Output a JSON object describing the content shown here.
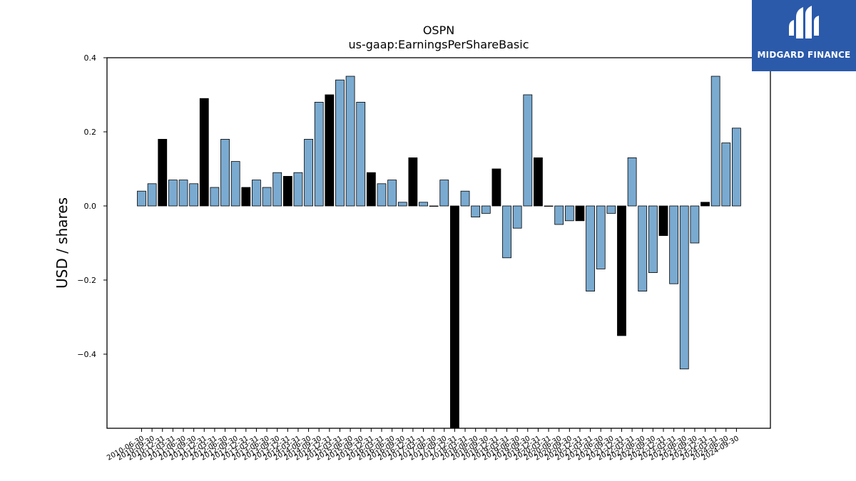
{
  "brand": {
    "name": "MIDGARD FINANCE",
    "logo_icon": "midgard-mark-icon",
    "background_color": "#2b5aaa"
  },
  "chart_data": {
    "type": "bar",
    "title": "OSPN",
    "subtitle": "us-gaap:EarningsPerShareBasic",
    "xlabel": "",
    "ylabel": "USD / shares",
    "ylim": [
      -0.6,
      0.4
    ],
    "yticks": [
      0.4,
      0.2,
      0.0,
      -0.2,
      -0.4
    ],
    "ytick_labels": [
      "0.4",
      "0.2",
      "0.0",
      "−0.2",
      "−0.4"
    ],
    "grid": false,
    "colors": {
      "quarterly": "#7aaad0",
      "annual": "#000000",
      "edge": "#000000"
    },
    "categories": [
      "2010-06-30",
      "2010-09-30",
      "2010-12-31",
      "2011-03-31",
      "2011-06-30",
      "2011-09-30",
      "2011-12-31",
      "2012-03-31",
      "2012-06-30",
      "2012-09-30",
      "2012-12-31",
      "2013-03-31",
      "2013-06-30",
      "2013-09-30",
      "2013-12-31",
      "2014-03-31",
      "2014-06-30",
      "2014-09-30",
      "2014-12-31",
      "2015-03-31",
      "2015-06-30",
      "2015-09-30",
      "2015-12-31",
      "2016-03-31",
      "2016-06-30",
      "2016-09-30",
      "2016-12-31",
      "2017-03-31",
      "2017-06-30",
      "2017-09-30",
      "2017-12-31",
      "2018-03-31",
      "2018-06-30",
      "2018-09-30",
      "2018-12-31",
      "2019-03-31",
      "2019-06-30",
      "2019-09-30",
      "2019-12-31",
      "2020-03-31",
      "2020-06-30",
      "2020-09-30",
      "2020-12-31",
      "2021-03-31",
      "2021-06-30",
      "2021-09-30",
      "2021-12-31",
      "2022-03-31",
      "2022-06-30",
      "2022-09-30",
      "2022-12-31",
      "2023-03-31",
      "2023-06-30",
      "2023-09-30",
      "2023-12-31",
      "2024-03-31",
      "2024-06-30",
      "2024-09-30"
    ],
    "values": [
      0.04,
      0.06,
      0.18,
      0.07,
      0.07,
      0.06,
      0.29,
      0.05,
      0.18,
      0.12,
      0.05,
      0.07,
      0.05,
      0.09,
      0.08,
      0.09,
      0.18,
      0.28,
      0.3,
      0.34,
      0.35,
      0.28,
      0.09,
      0.06,
      0.07,
      0.01,
      0.13,
      0.01,
      0.0,
      0.07,
      -0.6,
      0.04,
      -0.03,
      -0.02,
      0.1,
      -0.14,
      -0.06,
      0.3,
      0.13,
      0.0,
      -0.05,
      -0.04,
      -0.04,
      -0.23,
      -0.17,
      -0.02,
      -0.35,
      0.13,
      -0.23,
      -0.18,
      -0.08,
      -0.21,
      -0.44,
      -0.1,
      0.01,
      0.35,
      0.17,
      0.21
    ],
    "annual_flags": [
      0,
      0,
      1,
      0,
      0,
      0,
      1,
      0,
      0,
      0,
      1,
      0,
      0,
      0,
      1,
      0,
      0,
      0,
      1,
      0,
      0,
      0,
      1,
      0,
      0,
      0,
      1,
      0,
      0,
      0,
      1,
      0,
      0,
      0,
      1,
      0,
      0,
      0,
      1,
      0,
      0,
      0,
      1,
      0,
      0,
      0,
      1,
      0,
      0,
      0,
      1,
      0,
      0,
      0,
      1,
      0,
      0,
      0
    ]
  }
}
